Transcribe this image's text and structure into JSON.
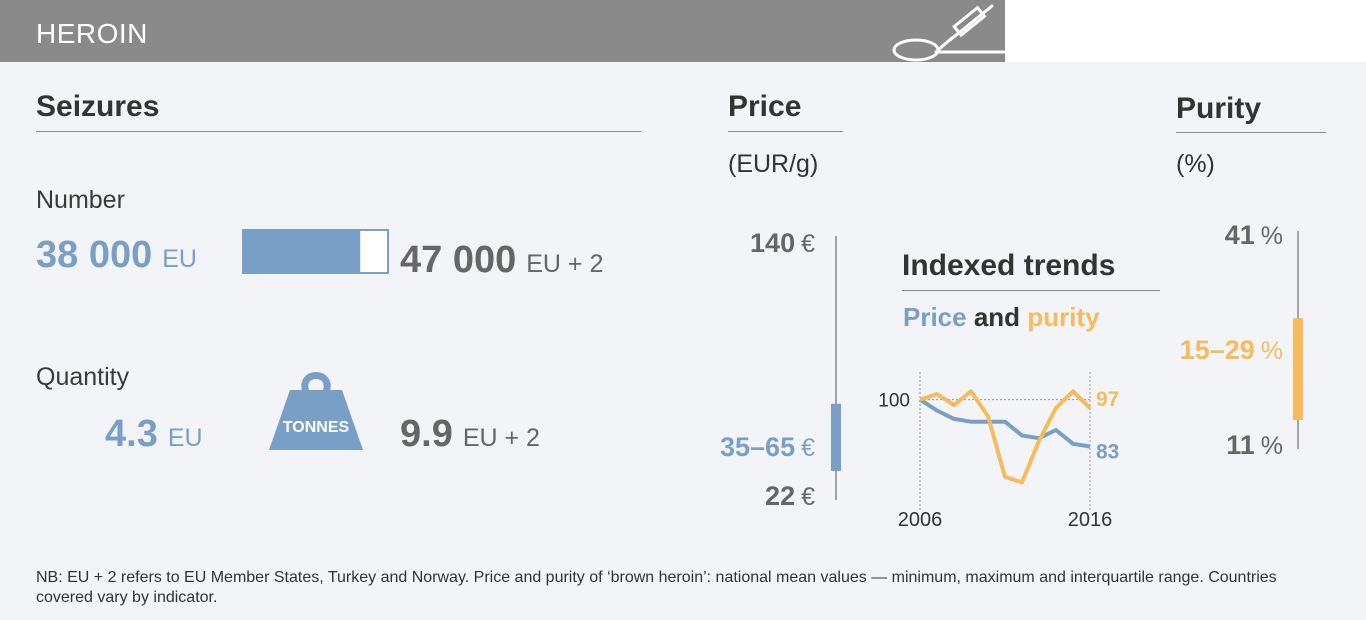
{
  "header": {
    "title": "HEROIN",
    "icon": "syringe-and-spoon-icon",
    "color": "#8a8a8a"
  },
  "seizures": {
    "title": "Seizures",
    "number": {
      "label": "Number",
      "eu_value": "38 000",
      "eu_suffix": "EU",
      "eu2_value": "47 000",
      "eu2_suffix": "EU + 2",
      "eu_share_of_eu2": 0.8085
    },
    "quantity": {
      "label": "Quantity",
      "eu_value": "4.3",
      "eu_suffix": "EU",
      "weight_label": "TONNES",
      "eu2_value": "9.9",
      "eu2_suffix": "EU + 2"
    }
  },
  "price": {
    "title": "Price",
    "unit": "(EUR/g)",
    "max_value": "140",
    "iqr_value": "35–65",
    "min_value": "22",
    "currency": "€"
  },
  "purity": {
    "title": "Purity",
    "unit": "(%)",
    "max_value": "41",
    "iqr_value": "15–29",
    "min_value": "11",
    "pct": "%"
  },
  "trends": {
    "title": "Indexed trends",
    "subtitle_price": "Price",
    "subtitle_and": "and",
    "subtitle_purity": "purity"
  },
  "footnote": "NB: EU + 2 refers to EU Member States, Turkey and Norway. Price and purity of ‘brown heroin’: national mean values — minimum, maximum and interquartile range. Countries covered vary by indicator.",
  "colors": {
    "blue": "#7a9fc6",
    "orange": "#f5bb5c",
    "gray": "#666666"
  },
  "chart_data": [
    {
      "type": "bar",
      "categories": [
        "EU",
        "EU + 2"
      ],
      "values": [
        38000,
        47000
      ]
    },
    {
      "type": "range",
      "ylim": [
        22,
        140
      ],
      "min": 22,
      "max": 140,
      "iqr": [
        35,
        65
      ]
    },
    {
      "type": "range",
      "ylim": [
        11,
        41
      ],
      "min": 11,
      "max": 41,
      "iqr": [
        15,
        29
      ]
    },
    {
      "type": "line",
      "x": [
        2006,
        2007,
        2008,
        2009,
        2010,
        2011,
        2012,
        2013,
        2014,
        2015,
        2016
      ],
      "xticks": [
        "2006",
        "2016"
      ],
      "baseline": 100,
      "ylim": [
        60,
        110
      ],
      "series": [
        {
          "name": "Price",
          "color": "#7a9fc6",
          "values": [
            100,
            96,
            93,
            92,
            92,
            92,
            87,
            86,
            89,
            84,
            83
          ],
          "end_label": "83"
        },
        {
          "name": "purity",
          "color": "#f5bb5c",
          "values": [
            100,
            102,
            98,
            103,
            94,
            72,
            70,
            85,
            97,
            103,
            97
          ],
          "end_label": "97"
        }
      ]
    }
  ]
}
